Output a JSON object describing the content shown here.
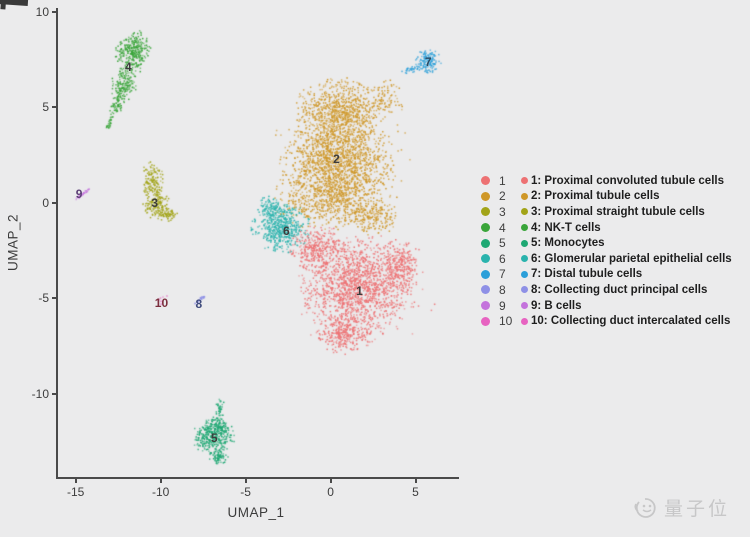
{
  "figure": {
    "background": "#ebebec",
    "axis_color": "#4a4a4a",
    "watermark": {
      "text": "量子位",
      "color": "#c7c7c8"
    }
  },
  "chart_data": {
    "type": "scatter",
    "title": "",
    "xlabel": "UMAP_1",
    "ylabel": "UMAP_2",
    "xticks": [
      -15,
      -10,
      -5,
      0,
      5
    ],
    "yticks": [
      10,
      5,
      0,
      -5,
      -10
    ],
    "xlim": [
      -16.1,
      7.5
    ],
    "ylim": [
      -14.35,
      10.2
    ],
    "grid": false,
    "legend_position": "right",
    "draw_order": [
      2,
      6,
      1,
      3,
      4,
      5,
      7,
      8,
      9,
      10
    ],
    "clusters": [
      {
        "id": 1,
        "label": "Proximal convoluted tubule cells",
        "color": "#ed7173",
        "label_color": "#3c3c3c",
        "label_pos": [
          1.7,
          -4.6
        ],
        "blobs": [
          [
            1.6,
            -4.4,
            3.4,
            2.6,
            0,
            1500
          ],
          [
            -0.8,
            -2.4,
            1.6,
            1.2,
            0,
            350
          ],
          [
            4.2,
            -3.3,
            1.2,
            1.4,
            0,
            250
          ],
          [
            0.8,
            -6.9,
            1.8,
            1.0,
            0,
            300
          ],
          [
            2.0,
            -4.5,
            4.3,
            3.3,
            0,
            130
          ]
        ]
      },
      {
        "id": 2,
        "label": "Proximal tubule cells",
        "color": "#cf9728",
        "label_color": "#3c3c3c",
        "label_pos": [
          0.35,
          2.3
        ],
        "blobs": [
          [
            0.6,
            4.8,
            2.7,
            1.7,
            0,
            800
          ],
          [
            0.4,
            2.3,
            3.3,
            2.2,
            0,
            1250
          ],
          [
            0.0,
            0.3,
            3.4,
            1.7,
            0,
            750
          ],
          [
            2.5,
            -0.7,
            1.4,
            1.0,
            0,
            200
          ],
          [
            3.2,
            5.4,
            1.3,
            1.0,
            0,
            90
          ],
          [
            0.5,
            2.5,
            4.2,
            3.4,
            0,
            110
          ]
        ]
      },
      {
        "id": 3,
        "label": "Proximal straight tubule cells",
        "color": "#a2a418",
        "label_color": "#3c3c3c",
        "label_pos": [
          -10.35,
          0.0
        ],
        "blobs": [
          [
            -10.5,
            1.2,
            0.65,
            0.95,
            0,
            130
          ],
          [
            -10.3,
            0.0,
            0.8,
            0.8,
            0,
            170
          ],
          [
            -9.6,
            -0.6,
            0.6,
            0.4,
            0,
            70
          ]
        ]
      },
      {
        "id": 4,
        "label": "NK-T cells",
        "color": "#3aa53a",
        "label_color": "#3c3c3c",
        "label_pos": [
          -11.9,
          7.1
        ],
        "blobs": [
          [
            -11.6,
            7.9,
            1.0,
            1.15,
            -20,
            320
          ],
          [
            -12.15,
            6.2,
            0.75,
            0.95,
            -15,
            170
          ],
          [
            -12.6,
            5.1,
            0.4,
            0.65,
            -20,
            60
          ],
          [
            -13.0,
            4.2,
            0.14,
            0.55,
            -25,
            28
          ]
        ]
      },
      {
        "id": 5,
        "label": "Monocytes",
        "color": "#1ea873",
        "label_color": "#3c3c3c",
        "label_pos": [
          -6.85,
          -12.3
        ],
        "blobs": [
          [
            -6.5,
            -10.8,
            0.25,
            0.6,
            0,
            40
          ],
          [
            -6.7,
            -11.7,
            0.85,
            0.55,
            0,
            130
          ],
          [
            -6.9,
            -12.3,
            1.3,
            0.8,
            0,
            300
          ],
          [
            -6.6,
            -13.3,
            0.55,
            0.45,
            0,
            80
          ]
        ]
      },
      {
        "id": 6,
        "label": "Glomerular parietal epithelial cells",
        "color": "#2ab3ad",
        "label_color": "#3c3c3c",
        "label_pos": [
          -2.6,
          -1.45
        ],
        "blobs": [
          [
            -2.9,
            -1.3,
            1.7,
            1.3,
            0,
            520
          ],
          [
            -3.5,
            -0.3,
            0.9,
            0.7,
            0,
            120
          ]
        ]
      },
      {
        "id": 7,
        "label": "Distal tubule cells",
        "color": "#2b9fd9",
        "label_color": "#2c4a63",
        "label_pos": [
          5.75,
          7.35
        ],
        "blobs": [
          [
            5.75,
            7.4,
            0.8,
            0.65,
            0,
            140
          ],
          [
            4.7,
            6.95,
            0.85,
            0.18,
            12,
            30
          ]
        ]
      },
      {
        "id": 8,
        "label": "Collecting duct principal cells",
        "color": "#8e90e6",
        "label_color": "#3f4b7c",
        "label_pos": [
          -7.75,
          -5.3
        ],
        "blobs": [
          [
            -7.65,
            -5.05,
            0.5,
            0.09,
            35,
            22
          ]
        ]
      },
      {
        "id": 9,
        "label": "B cells",
        "color": "#c473dc",
        "label_color": "#5c3f76",
        "label_pos": [
          -14.8,
          0.45
        ],
        "blobs": [
          [
            -14.6,
            0.45,
            0.6,
            0.1,
            35,
            30
          ]
        ]
      },
      {
        "id": 10,
        "label": "Collecting duct intercalated cells",
        "color": "#e763c1",
        "label_color": "#7c2f3e",
        "label_pos": [
          -9.95,
          -5.25
        ],
        "blobs": [
          [
            -9.85,
            -5.0,
            0.5,
            0.35,
            0,
            7
          ]
        ]
      }
    ]
  }
}
